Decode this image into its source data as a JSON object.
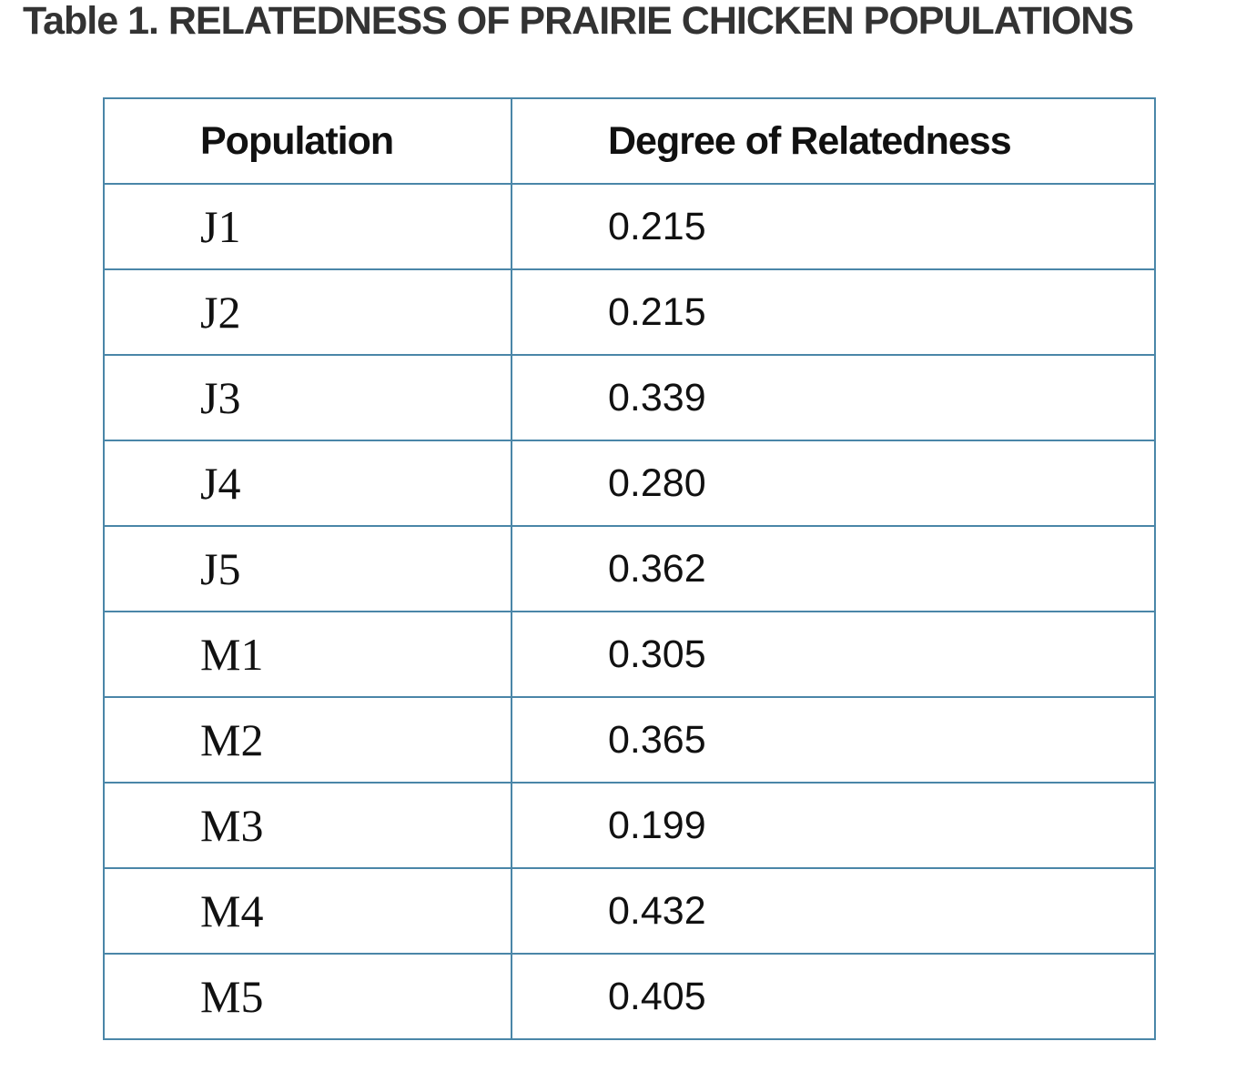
{
  "title": "Table 1. RELATEDNESS OF PRAIRIE CHICKEN POPULATIONS",
  "table": {
    "header": [
      "Population",
      "Degree of Relatedness"
    ],
    "rows": [
      [
        "J1",
        "0.215"
      ],
      [
        "J2",
        "0.215"
      ],
      [
        "J3",
        "0.339"
      ],
      [
        "J4",
        "0.280"
      ],
      [
        "J5",
        "0.362"
      ],
      [
        "M1",
        "0.305"
      ],
      [
        "M2",
        "0.365"
      ],
      [
        "M3",
        "0.199"
      ],
      [
        "M4",
        "0.432"
      ],
      [
        "M5",
        "0.405"
      ]
    ]
  }
}
